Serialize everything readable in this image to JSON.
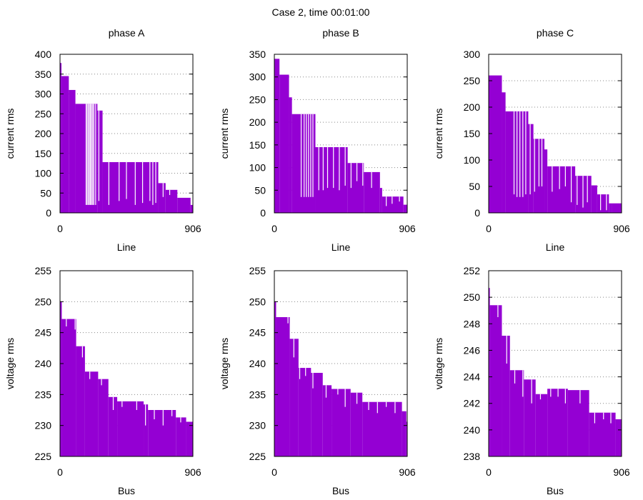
{
  "title": "Case 2, time 00:01:00",
  "colors": {
    "bar": "#9400d3",
    "gap": "#ffffff"
  },
  "chart_data": [
    {
      "type": "bar",
      "title": "phase A",
      "xlabel": "Line",
      "ylabel": "current rms",
      "xlim": [
        0,
        906
      ],
      "xticks": [
        0,
        906
      ],
      "ylim": [
        0,
        400
      ],
      "yticks": [
        0,
        50,
        100,
        150,
        200,
        250,
        300,
        350,
        400
      ],
      "grid": true,
      "profile": [
        [
          0,
          378
        ],
        [
          10,
          345
        ],
        [
          60,
          310
        ],
        [
          105,
          275
        ],
        [
          255,
          258
        ],
        [
          290,
          128
        ],
        [
          670,
          75
        ],
        [
          720,
          58
        ],
        [
          800,
          38
        ],
        [
          890,
          20
        ]
      ],
      "gaps": [
        [
          175,
          20
        ],
        [
          182,
          20
        ],
        [
          190,
          20
        ],
        [
          198,
          20
        ],
        [
          205,
          20
        ],
        [
          212,
          20
        ],
        [
          220,
          20
        ],
        [
          228,
          20
        ],
        [
          240,
          20
        ],
        [
          262,
          30
        ],
        [
          330,
          20
        ],
        [
          400,
          30
        ],
        [
          450,
          35
        ],
        [
          510,
          20
        ],
        [
          560,
          25
        ],
        [
          610,
          30
        ],
        [
          630,
          20
        ],
        [
          650,
          25
        ],
        [
          700,
          40
        ],
        [
          745,
          45
        ]
      ]
    },
    {
      "type": "bar",
      "title": "phase B",
      "xlabel": "Line",
      "ylabel": "current rms",
      "xlim": [
        0,
        906
      ],
      "xticks": [
        0,
        906
      ],
      "ylim": [
        0,
        350
      ],
      "yticks": [
        0,
        50,
        100,
        150,
        200,
        250,
        300,
        350
      ],
      "grid": true,
      "profile": [
        [
          0,
          340
        ],
        [
          35,
          305
        ],
        [
          100,
          255
        ],
        [
          120,
          218
        ],
        [
          280,
          145
        ],
        [
          500,
          110
        ],
        [
          610,
          90
        ],
        [
          720,
          55
        ],
        [
          735,
          36
        ],
        [
          880,
          18
        ]
      ],
      "gaps": [
        [
          180,
          35
        ],
        [
          200,
          35
        ],
        [
          215,
          35
        ],
        [
          230,
          35
        ],
        [
          245,
          35
        ],
        [
          260,
          35
        ],
        [
          300,
          50
        ],
        [
          330,
          50
        ],
        [
          360,
          55
        ],
        [
          400,
          55
        ],
        [
          440,
          50
        ],
        [
          480,
          60
        ],
        [
          520,
          55
        ],
        [
          560,
          70
        ],
        [
          600,
          60
        ],
        [
          660,
          55
        ],
        [
          760,
          15
        ],
        [
          800,
          20
        ],
        [
          850,
          25
        ]
      ]
    },
    {
      "type": "bar",
      "title": "phase C",
      "xlabel": "Line",
      "ylabel": "current rms",
      "xlim": [
        0,
        906
      ],
      "xticks": [
        0,
        906
      ],
      "ylim": [
        0,
        300
      ],
      "yticks": [
        0,
        50,
        100,
        150,
        200,
        250,
        300
      ],
      "grid": true,
      "profile": [
        [
          0,
          260
        ],
        [
          90,
          228
        ],
        [
          115,
          192
        ],
        [
          270,
          168
        ],
        [
          305,
          140
        ],
        [
          380,
          120
        ],
        [
          400,
          88
        ],
        [
          590,
          70
        ],
        [
          700,
          52
        ],
        [
          740,
          35
        ],
        [
          820,
          18
        ],
        [
          840,
          18
        ]
      ],
      "gaps": [
        [
          170,
          35
        ],
        [
          190,
          30
        ],
        [
          210,
          30
        ],
        [
          230,
          30
        ],
        [
          250,
          35
        ],
        [
          280,
          35
        ],
        [
          310,
          40
        ],
        [
          340,
          50
        ],
        [
          360,
          50
        ],
        [
          430,
          40
        ],
        [
          480,
          45
        ],
        [
          520,
          50
        ],
        [
          560,
          20
        ],
        [
          600,
          15
        ],
        [
          640,
          10
        ],
        [
          670,
          20
        ],
        [
          760,
          5
        ],
        [
          800,
          5
        ]
      ]
    },
    {
      "type": "bar",
      "title": "",
      "xlabel": "Bus",
      "ylabel": "voltage rms",
      "xlim": [
        0,
        906
      ],
      "xticks": [
        0,
        906
      ],
      "ylim": [
        225,
        255
      ],
      "yticks": [
        225,
        230,
        235,
        240,
        245,
        250,
        255
      ],
      "grid": true,
      "profile": [
        [
          0,
          250.0
        ],
        [
          12,
          247.2
        ],
        [
          110,
          242.8
        ],
        [
          170,
          238.7
        ],
        [
          260,
          237.5
        ],
        [
          330,
          234.6
        ],
        [
          390,
          233.9
        ],
        [
          570,
          233.4
        ],
        [
          600,
          232.5
        ],
        [
          790,
          231.3
        ],
        [
          860,
          230.6
        ]
      ],
      "gaps": [
        [
          40,
          246.0
        ],
        [
          100,
          245.5
        ],
        [
          150,
          241.0
        ],
        [
          200,
          237.5
        ],
        [
          280,
          236.5
        ],
        [
          360,
          232.5
        ],
        [
          420,
          233.0
        ],
        [
          520,
          232.5
        ],
        [
          580,
          230.0
        ],
        [
          640,
          231.0
        ],
        [
          700,
          230.0
        ],
        [
          760,
          231.5
        ],
        [
          820,
          230.5
        ]
      ]
    },
    {
      "type": "bar",
      "title": "",
      "xlabel": "Bus",
      "ylabel": "voltage rms",
      "xlim": [
        0,
        906
      ],
      "xticks": [
        0,
        906
      ],
      "ylim": [
        225,
        255
      ],
      "yticks": [
        225,
        230,
        235,
        240,
        245,
        250,
        255
      ],
      "grid": true,
      "profile": [
        [
          0,
          250.0
        ],
        [
          12,
          247.5
        ],
        [
          105,
          244.0
        ],
        [
          165,
          239.3
        ],
        [
          250,
          238.5
        ],
        [
          330,
          236.5
        ],
        [
          390,
          235.9
        ],
        [
          520,
          235.3
        ],
        [
          600,
          233.8
        ],
        [
          870,
          232.3
        ],
        [
          900,
          230.6
        ]
      ],
      "gaps": [
        [
          90,
          246.5
        ],
        [
          130,
          241.0
        ],
        [
          170,
          237.5
        ],
        [
          210,
          238.0
        ],
        [
          260,
          236.0
        ],
        [
          350,
          234.5
        ],
        [
          430,
          235.0
        ],
        [
          480,
          233.0
        ],
        [
          560,
          233.5
        ],
        [
          640,
          232.5
        ],
        [
          700,
          232.0
        ],
        [
          760,
          233.0
        ],
        [
          820,
          232.0
        ]
      ]
    },
    {
      "type": "bar",
      "title": "",
      "xlabel": "Bus",
      "ylabel": "voltage rms",
      "xlim": [
        0,
        906
      ],
      "xticks": [
        0,
        906
      ],
      "ylim": [
        238,
        252
      ],
      "yticks": [
        238,
        240,
        242,
        244,
        246,
        248,
        250,
        252
      ],
      "grid": true,
      "profile": [
        [
          0,
          250.7
        ],
        [
          8,
          249.4
        ],
        [
          90,
          247.1
        ],
        [
          145,
          244.5
        ],
        [
          240,
          243.8
        ],
        [
          320,
          242.7
        ],
        [
          400,
          243.1
        ],
        [
          540,
          243.0
        ],
        [
          685,
          241.3
        ],
        [
          865,
          240.8
        ]
      ],
      "gaps": [
        [
          60,
          248.5
        ],
        [
          120,
          245.0
        ],
        [
          175,
          243.5
        ],
        [
          230,
          242.5
        ],
        [
          290,
          242.0
        ],
        [
          350,
          242.3
        ],
        [
          420,
          242.5
        ],
        [
          470,
          242.5
        ],
        [
          520,
          242.0
        ],
        [
          620,
          242.0
        ],
        [
          720,
          240.5
        ],
        [
          780,
          240.8
        ],
        [
          830,
          240.5
        ]
      ]
    }
  ]
}
